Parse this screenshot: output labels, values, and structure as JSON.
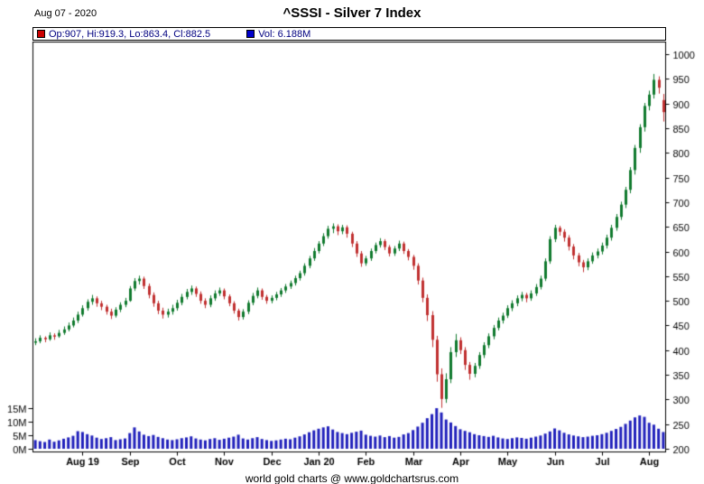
{
  "header": {
    "date": "Aug 07 - 2020",
    "title": "^SSSI - Silver 7 Index"
  },
  "legend": {
    "ohlc": "Op:907, Hi:919.3, Lo:863.4, Cl:882.5",
    "volume": "Vol: 6.188M"
  },
  "footer": {
    "credit": "world gold charts @ www.goldchartsrus.com"
  },
  "colors": {
    "up": "#107a2e",
    "down": "#c03030",
    "volume": "#2020bb",
    "legend_ohlc_swatch": "#cc0000",
    "legend_volume_swatch": "#0000cc",
    "legend_text": "#000080",
    "axis_text": "#000000",
    "frame": "#000000"
  },
  "chart_data": {
    "type": "candlestick_with_volume",
    "title": "^SSSI - Silver 7 Index",
    "as_of_date": "Aug 07 - 2020",
    "last_candle": {
      "open": 907,
      "high": 919.3,
      "low": 863.4,
      "close": 882.5,
      "volume_label": "6.188M"
    },
    "price_axis": {
      "min": 200,
      "max": 1000,
      "tick_step": 50,
      "ticks": [
        200,
        250,
        300,
        350,
        400,
        450,
        500,
        550,
        600,
        650,
        700,
        750,
        800,
        850,
        900,
        950,
        1000
      ]
    },
    "volume_axis": {
      "unit": "M",
      "ticks": [
        {
          "label": "0M",
          "value": 0
        },
        {
          "label": "5M",
          "value": 5
        },
        {
          "label": "10M",
          "value": 10
        },
        {
          "label": "15M",
          "value": 15
        }
      ]
    },
    "x_labels": [
      {
        "label": "Aug 19",
        "index": 10
      },
      {
        "label": "Sep",
        "index": 20
      },
      {
        "label": "Oct",
        "index": 30
      },
      {
        "label": "Nov",
        "index": 40
      },
      {
        "label": "Dec",
        "index": 50
      },
      {
        "label": "Jan 20",
        "index": 60
      },
      {
        "label": "Feb",
        "index": 70
      },
      {
        "label": "Mar",
        "index": 80
      },
      {
        "label": "Apr",
        "index": 90
      },
      {
        "label": "May",
        "index": 100
      },
      {
        "label": "Jun",
        "index": 110
      },
      {
        "label": "Jul",
        "index": 120
      },
      {
        "label": "Aug",
        "index": 130
      }
    ],
    "candle_fields": [
      "open",
      "high",
      "low",
      "close",
      "volume_millions"
    ],
    "candles": [
      [
        415,
        424,
        410,
        418,
        3.2
      ],
      [
        418,
        430,
        414,
        425,
        2.8
      ],
      [
        425,
        428,
        416,
        422,
        2.5
      ],
      [
        422,
        436,
        419,
        430,
        3.4
      ],
      [
        430,
        434,
        421,
        428,
        2.6
      ],
      [
        428,
        441,
        425,
        435,
        3.1
      ],
      [
        435,
        448,
        431,
        442,
        3.7
      ],
      [
        442,
        456,
        438,
        450,
        4.2
      ],
      [
        450,
        466,
        446,
        460,
        4.8
      ],
      [
        460,
        478,
        455,
        472,
        6.5
      ],
      [
        472,
        491,
        468,
        485,
        6.2
      ],
      [
        485,
        503,
        480,
        498,
        5.4
      ],
      [
        498,
        512,
        492,
        505,
        4.9
      ],
      [
        505,
        509,
        488,
        495,
        4.1
      ],
      [
        495,
        500,
        481,
        488,
        3.6
      ],
      [
        488,
        492,
        472,
        478,
        3.9
      ],
      [
        478,
        484,
        463,
        470,
        4.3
      ],
      [
        470,
        487,
        466,
        482,
        3.2
      ],
      [
        482,
        497,
        477,
        492,
        3.5
      ],
      [
        492,
        506,
        487,
        500,
        3.8
      ],
      [
        500,
        530,
        498,
        525,
        5.8
      ],
      [
        525,
        546,
        520,
        540,
        7.9
      ],
      [
        540,
        551,
        533,
        545,
        6.4
      ],
      [
        545,
        549,
        524,
        530,
        5.2
      ],
      [
        530,
        535,
        505,
        512,
        4.7
      ],
      [
        512,
        517,
        488,
        495,
        5.1
      ],
      [
        495,
        500,
        473,
        480,
        4.4
      ],
      [
        480,
        486,
        464,
        472,
        3.9
      ],
      [
        472,
        484,
        466,
        478,
        3.4
      ],
      [
        478,
        492,
        472,
        485,
        3.2
      ],
      [
        485,
        502,
        480,
        496,
        3.5
      ],
      [
        496,
        514,
        491,
        508,
        3.9
      ],
      [
        508,
        524,
        503,
        518,
        4.2
      ],
      [
        518,
        531,
        512,
        525,
        4.6
      ],
      [
        525,
        529,
        508,
        514,
        3.8
      ],
      [
        514,
        519,
        494,
        500,
        3.4
      ],
      [
        500,
        505,
        485,
        492,
        3.1
      ],
      [
        492,
        511,
        487,
        505,
        3.6
      ],
      [
        505,
        521,
        500,
        515,
        3.9
      ],
      [
        515,
        527,
        510,
        521,
        3.3
      ],
      [
        521,
        525,
        503,
        509,
        3.7
      ],
      [
        509,
        513,
        489,
        495,
        4.1
      ],
      [
        495,
        499,
        474,
        480,
        4.5
      ],
      [
        480,
        484,
        460,
        467,
        5.2
      ],
      [
        467,
        483,
        462,
        478,
        3.8
      ],
      [
        478,
        501,
        473,
        496,
        3.4
      ],
      [
        496,
        516,
        491,
        510,
        3.9
      ],
      [
        510,
        527,
        505,
        521,
        4.3
      ],
      [
        521,
        525,
        502,
        508,
        3.6
      ],
      [
        508,
        512,
        494,
        500,
        3.2
      ],
      [
        500,
        511,
        495,
        506,
        2.9
      ],
      [
        506,
        518,
        501,
        513,
        3.1
      ],
      [
        513,
        526,
        508,
        521,
        3.4
      ],
      [
        521,
        534,
        516,
        529,
        3.7
      ],
      [
        529,
        541,
        524,
        536,
        3.5
      ],
      [
        536,
        551,
        531,
        546,
        4.1
      ],
      [
        546,
        561,
        541,
        556,
        4.6
      ],
      [
        556,
        576,
        551,
        571,
        5.3
      ],
      [
        571,
        591,
        566,
        586,
        6.1
      ],
      [
        586,
        607,
        581,
        601,
        6.8
      ],
      [
        601,
        621,
        596,
        616,
        7.4
      ],
      [
        616,
        637,
        611,
        631,
        7.9
      ],
      [
        631,
        652,
        626,
        646,
        8.3
      ],
      [
        646,
        657,
        637,
        651,
        7.1
      ],
      [
        651,
        655,
        633,
        641,
        6.2
      ],
      [
        641,
        654,
        635,
        649,
        5.8
      ],
      [
        649,
        653,
        628,
        636,
        5.4
      ],
      [
        636,
        640,
        609,
        616,
        5.9
      ],
      [
        616,
        621,
        589,
        596,
        6.3
      ],
      [
        596,
        601,
        569,
        576,
        6.7
      ],
      [
        576,
        591,
        571,
        586,
        5.2
      ],
      [
        586,
        606,
        581,
        601,
        4.8
      ],
      [
        601,
        618,
        596,
        613,
        4.5
      ],
      [
        613,
        627,
        608,
        621,
        4.9
      ],
      [
        621,
        625,
        603,
        609,
        4.3
      ],
      [
        609,
        613,
        590,
        596,
        4.7
      ],
      [
        596,
        611,
        591,
        606,
        4.1
      ],
      [
        606,
        622,
        601,
        616,
        4.4
      ],
      [
        616,
        620,
        595,
        601,
        5.3
      ],
      [
        601,
        605,
        582,
        589,
        5.8
      ],
      [
        589,
        593,
        563,
        571,
        6.9
      ],
      [
        571,
        576,
        533,
        541,
        8.2
      ],
      [
        541,
        547,
        497,
        506,
        9.6
      ],
      [
        506,
        513,
        459,
        471,
        11.3
      ],
      [
        471,
        479,
        406,
        421,
        12.8
      ],
      [
        421,
        429,
        336,
        351,
        15.0
      ],
      [
        351,
        363,
        283,
        301,
        13.4
      ],
      [
        301,
        353,
        293,
        341,
        10.8
      ],
      [
        341,
        406,
        333,
        396,
        9.7
      ],
      [
        396,
        433,
        386,
        420,
        8.4
      ],
      [
        420,
        426,
        392,
        400,
        7.2
      ],
      [
        400,
        406,
        360,
        370,
        6.6
      ],
      [
        370,
        376,
        340,
        352,
        6.1
      ],
      [
        352,
        374,
        345,
        368,
        5.4
      ],
      [
        368,
        396,
        362,
        390,
        5.0
      ],
      [
        390,
        416,
        384,
        410,
        4.7
      ],
      [
        410,
        434,
        404,
        428,
        4.4
      ],
      [
        428,
        451,
        422,
        445,
        4.8
      ],
      [
        445,
        466,
        440,
        460,
        4.2
      ],
      [
        460,
        476,
        454,
        470,
        3.8
      ],
      [
        470,
        491,
        465,
        485,
        3.6
      ],
      [
        485,
        501,
        479,
        495,
        3.9
      ],
      [
        495,
        511,
        489,
        505,
        4.2
      ],
      [
        505,
        518,
        499,
        512,
        4.0
      ],
      [
        512,
        516,
        497,
        505,
        3.7
      ],
      [
        505,
        521,
        500,
        515,
        4.1
      ],
      [
        515,
        534,
        510,
        528,
        4.5
      ],
      [
        528,
        551,
        523,
        545,
        4.9
      ],
      [
        545,
        586,
        540,
        580,
        5.6
      ],
      [
        580,
        631,
        575,
        625,
        6.4
      ],
      [
        625,
        654,
        619,
        648,
        7.5
      ],
      [
        648,
        652,
        632,
        640,
        6.8
      ],
      [
        640,
        645,
        620,
        628,
        5.9
      ],
      [
        628,
        633,
        602,
        610,
        5.3
      ],
      [
        610,
        615,
        584,
        592,
        4.9
      ],
      [
        592,
        597,
        570,
        578,
        4.6
      ],
      [
        578,
        583,
        558,
        568,
        4.3
      ],
      [
        568,
        586,
        562,
        580,
        4.5
      ],
      [
        580,
        598,
        575,
        592,
        4.8
      ],
      [
        592,
        606,
        586,
        600,
        5.0
      ],
      [
        600,
        618,
        594,
        612,
        5.4
      ],
      [
        612,
        634,
        606,
        628,
        5.9
      ],
      [
        628,
        654,
        622,
        648,
        6.6
      ],
      [
        648,
        676,
        642,
        670,
        7.3
      ],
      [
        670,
        701,
        664,
        695,
        8.1
      ],
      [
        695,
        731,
        688,
        725,
        9.2
      ],
      [
        725,
        771,
        718,
        765,
        10.4
      ],
      [
        765,
        816,
        756,
        810,
        11.6
      ],
      [
        810,
        858,
        800,
        852,
        12.3
      ],
      [
        852,
        901,
        843,
        895,
        11.8
      ],
      [
        895,
        926,
        886,
        918,
        9.6
      ],
      [
        918,
        960,
        910,
        948,
        8.9
      ],
      [
        948,
        955,
        920,
        932,
        7.4
      ],
      [
        907,
        919.3,
        863.4,
        882.5,
        6.188
      ]
    ]
  }
}
